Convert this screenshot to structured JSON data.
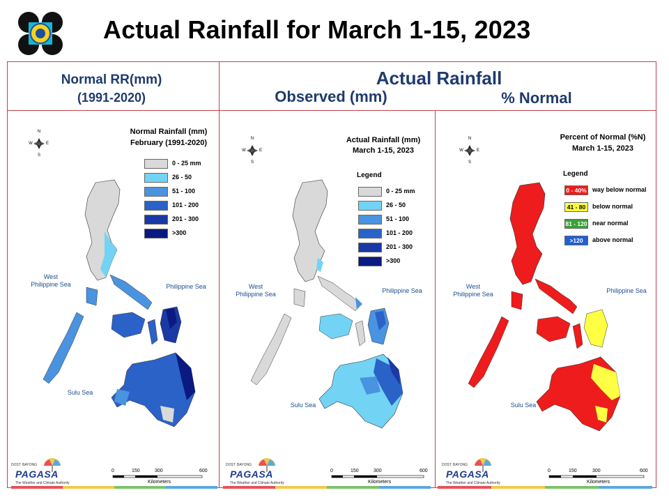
{
  "slide": {
    "title": "Actual Rainfall for March 1-15, 2023"
  },
  "headers": {
    "normal_line1": "Normal RR(mm)",
    "normal_line2": "(1991-2020)",
    "actual": "Actual Rainfall",
    "observed": "Observed (mm)",
    "percent": "% Normal"
  },
  "panels": [
    {
      "title_line1": "Normal Rainfall (mm)",
      "title_line2": "February (1991-2020)",
      "legend_heading": "",
      "legend": [
        {
          "label": "0 - 25 mm",
          "color": "#d9d9d9"
        },
        {
          "label": "26 - 50",
          "color": "#73d3f5"
        },
        {
          "label": "51 - 100",
          "color": "#4a93e0"
        },
        {
          "label": "101 - 200",
          "color": "#2a62c8"
        },
        {
          "label": "201 - 300",
          "color": "#1a39a5"
        },
        {
          "label": ">300",
          "color": "#0a1a80"
        }
      ]
    },
    {
      "title_line1": "Actual Rainfall (mm)",
      "title_line2": "March 1-15, 2023",
      "legend_heading": "Legend",
      "legend": [
        {
          "label": "0 - 25 mm",
          "color": "#d9d9d9"
        },
        {
          "label": "26 - 50",
          "color": "#73d3f5"
        },
        {
          "label": "51 - 100",
          "color": "#4a93e0"
        },
        {
          "label": "101 - 200",
          "color": "#2a62c8"
        },
        {
          "label": "201 - 300",
          "color": "#1a39a5"
        },
        {
          "label": ">300",
          "color": "#0a1a80"
        }
      ]
    },
    {
      "title_line1": "Percent of Normal (%N)",
      "title_line2": "March 1-15, 2023",
      "legend_heading": "Legend",
      "legend": [
        {
          "swatch": "0 - 40%",
          "label": "way below normal",
          "color": "#ee1c1c"
        },
        {
          "swatch": "41 - 80",
          "label": "below normal",
          "color": "#ffff44"
        },
        {
          "swatch": "81 - 120",
          "label": "near normal",
          "color": "#3aa23a"
        },
        {
          "swatch": ">120",
          "label": "above normal",
          "color": "#1f5fd8"
        }
      ]
    }
  ],
  "map_labels": {
    "west_sea_line1": "West",
    "west_sea_line2": "Philippine Sea",
    "philippine_sea": "Philippine Sea",
    "sulu_sea": "Sulu Sea",
    "scale_0": "0",
    "scale_150": "150",
    "scale_300": "300",
    "scale_600": "600",
    "scale_unit": "Kilometers",
    "compass_n": "N",
    "compass_s": "S",
    "compass_e": "E",
    "compass_w": "W"
  },
  "branding": {
    "pagasa": "PAGASA",
    "dost": "DOST",
    "bayong": "BAYONG",
    "tagline": "The Weather and Climate Authority"
  },
  "colors": {
    "frame": "#c0404a",
    "header_text": "#1f3a6e",
    "brand_bar": [
      "#e8525a",
      "#f2c94c",
      "#7cc36a",
      "#5aa8e0"
    ]
  }
}
